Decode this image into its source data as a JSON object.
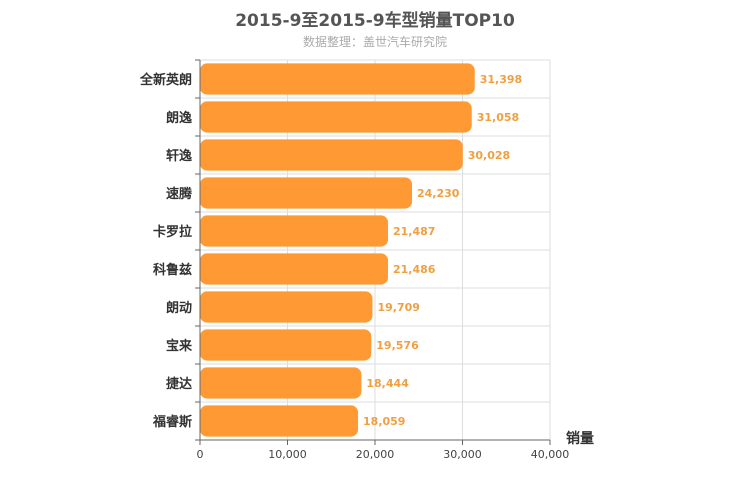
{
  "chart_data": {
    "type": "bar",
    "orientation": "horizontal",
    "title": "2015-9至2015-9车型销量TOP10",
    "subtitle": "数据整理：盖世汽车研究院",
    "xlabel": "销量",
    "categories": [
      "全新英朗",
      "朗逸",
      "轩逸",
      "速腾",
      "卡罗拉",
      "科鲁兹",
      "朗动",
      "宝来",
      "捷达",
      "福睿斯"
    ],
    "values": [
      31398,
      31058,
      30028,
      24230,
      21487,
      21486,
      19709,
      19576,
      18444,
      18059
    ],
    "value_labels": [
      "31,398",
      "31,058",
      "30,028",
      "24,230",
      "21,487",
      "21,486",
      "19,709",
      "19,576",
      "18,444",
      "18,059"
    ],
    "xlim": [
      0,
      40000
    ],
    "xticks": [
      "0",
      "10,000",
      "20,000",
      "30,000",
      "40,000"
    ],
    "grid": true,
    "bar_color": "#ff9933"
  }
}
